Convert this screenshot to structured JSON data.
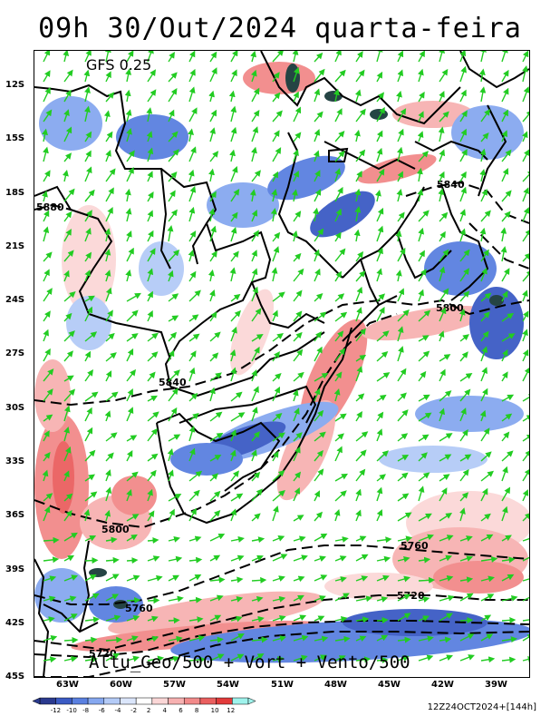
{
  "title": "09h  30/Out/2024  quarta-feira",
  "model": "GFS 0.25",
  "bottom_title": "Altu_Geo/500 + Vort + Vento/500",
  "run_info": "12Z24OCT2024+[144h]",
  "lat_labels": [
    "12S",
    "15S",
    "18S",
    "21S",
    "24S",
    "27S",
    "30S",
    "33S",
    "36S",
    "39S",
    "42S",
    "45S"
  ],
  "lon_labels": [
    "63W",
    "60W",
    "57W",
    "54W",
    "51W",
    "48W",
    "45W",
    "42W",
    "39W"
  ],
  "contour_labels": [
    "5880",
    "5840",
    "5800",
    "5840",
    "5800",
    "5760",
    "5720",
    "5760",
    "5720"
  ],
  "colorbar": {
    "labels": [
      "-12",
      "-10",
      "-8",
      "-6",
      "-4",
      "-2",
      "2",
      "4",
      "6",
      "8",
      "10",
      "12"
    ],
    "colors": [
      "#2a3a8f",
      "#3b5bc4",
      "#5a80e0",
      "#86a8f0",
      "#b4cbf7",
      "#dbe6fb",
      "#ffffff",
      "#fbd7d7",
      "#f7b1b1",
      "#f28a8a",
      "#ea5f5f",
      "#e23a3a",
      "#9ff3ec"
    ]
  },
  "colors": {
    "wind_arrow": "#22cc22",
    "boundary": "#000000",
    "contour": "#000000"
  }
}
